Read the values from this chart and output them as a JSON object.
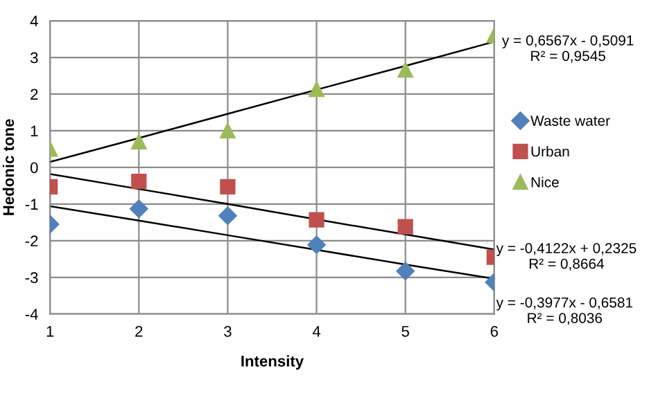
{
  "chart_data": {
    "type": "scatter",
    "xlabel": "Intensity",
    "ylabel": "Hedonic tone",
    "x": [
      1,
      2,
      3,
      4,
      5,
      6
    ],
    "series": [
      {
        "name": "Waste water",
        "color": "#4f81bd",
        "marker": "diamond",
        "values": [
          -1.55,
          -1.13,
          -1.32,
          -2.11,
          -2.83,
          -3.13
        ]
      },
      {
        "name": "Urban",
        "color": "#c0504d",
        "marker": "square",
        "values": [
          -0.53,
          -0.38,
          -0.53,
          -1.43,
          -1.62,
          -2.45
        ]
      },
      {
        "name": "Nice",
        "color": "#9bbb59",
        "marker": "triangle",
        "values": [
          0.5,
          0.7,
          1.0,
          2.13,
          2.66,
          3.6
        ]
      },
      {
        "type": "line",
        "color": "#000000",
        "marker": "none",
        "values": [
          0.15,
          0.8,
          1.46,
          2.12,
          2.77,
          3.43
        ]
      },
      {
        "type": "line",
        "color": "#000000",
        "marker": "none",
        "values": [
          -0.18,
          -0.59,
          -1.0,
          -1.42,
          -1.83,
          -2.24
        ]
      },
      {
        "type": "line",
        "color": "#000000",
        "marker": "none",
        "values": [
          -1.06,
          -1.45,
          -1.85,
          -2.25,
          -2.65,
          -3.04
        ]
      }
    ],
    "annotations": [
      "y = 0,6567x - 0,5091\nR² = 0,9545",
      "y = -0,4122x + 0,2325\nR² = 0,8664",
      "y = -0,3977x - 0,6581\nR² = 0,8036"
    ],
    "xlim": [
      1,
      6
    ],
    "xticks": [
      1,
      2,
      3,
      4,
      5,
      6
    ],
    "ylim": [
      -4,
      4
    ],
    "yticks": [
      -4,
      -3,
      -2,
      -1,
      0,
      1,
      2,
      3,
      4
    ],
    "grid": true,
    "legend": "right"
  }
}
